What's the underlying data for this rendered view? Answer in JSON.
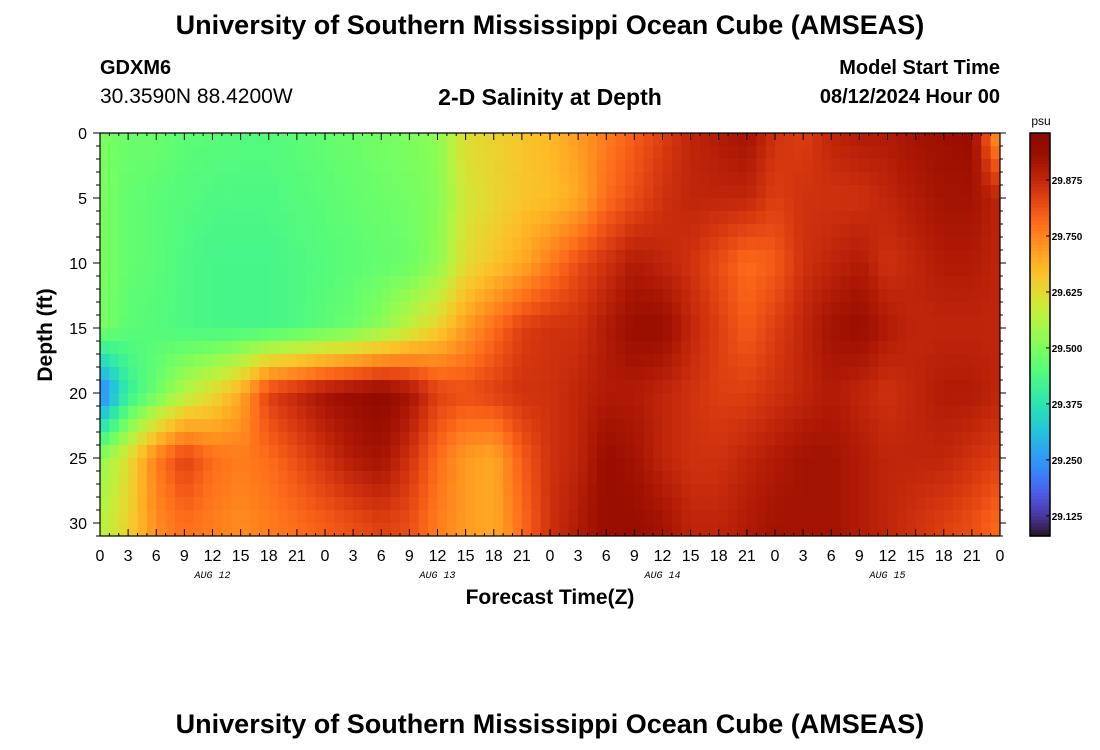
{
  "header": {
    "title": "University of Southern Mississippi Ocean Cube (AMSEAS)",
    "station_id": "GDXM6",
    "coordinates": "30.3590N  88.4200W",
    "product": "2-D Salinity at Depth",
    "model_start_label": "Model Start Time",
    "model_start_value": "08/12/2024 Hour 00"
  },
  "footer": {
    "title": "University of Southern Mississippi Ocean Cube (AMSEAS)"
  },
  "chart_data": {
    "type": "heatmap",
    "xlabel": "Forecast Time(Z)",
    "ylabel": "Depth (ft)",
    "x_tick_labels": [
      "0",
      "3",
      "6",
      "9",
      "12",
      "15",
      "18",
      "21",
      "0",
      "3",
      "6",
      "9",
      "12",
      "15",
      "18",
      "21",
      "0",
      "3",
      "6",
      "9",
      "12",
      "15",
      "18",
      "21",
      "0",
      "3",
      "6",
      "9",
      "12",
      "15",
      "18",
      "21",
      "0"
    ],
    "x_range_hours": [
      0,
      96
    ],
    "day_labels": [
      {
        "label": "AUG 12",
        "hour": 12
      },
      {
        "label": "AUG 13",
        "hour": 36
      },
      {
        "label": "AUG 14",
        "hour": 60
      },
      {
        "label": "AUG 15",
        "hour": 84
      }
    ],
    "ylim": [
      0,
      31
    ],
    "y_inverted": true,
    "y_ticks": [
      0,
      5,
      10,
      15,
      20,
      25,
      30
    ],
    "colorbar": {
      "unit": "psu",
      "range": [
        29.08,
        29.98
      ],
      "ticks": [
        "29.125",
        "29.250",
        "29.375",
        "29.500",
        "29.625",
        "29.750",
        "29.875"
      ],
      "tick_values": [
        29.125,
        29.25,
        29.375,
        29.5,
        29.625,
        29.75,
        29.875
      ],
      "colormap": "turbo"
    },
    "field_hours": [
      0,
      3,
      6,
      9,
      12,
      15,
      18,
      21,
      24,
      27,
      30,
      33,
      36,
      39,
      42,
      45,
      48,
      51,
      54,
      57,
      60,
      63,
      66,
      69,
      72,
      75,
      78,
      81,
      84,
      87,
      90,
      93,
      96
    ],
    "field_depths": [
      0,
      5,
      10,
      15,
      20,
      25,
      30
    ],
    "field_values": [
      [
        29.5,
        29.48,
        29.48,
        29.46,
        29.46,
        29.45,
        29.45,
        29.46,
        29.47,
        29.48,
        29.49,
        29.5,
        29.52,
        29.62,
        29.64,
        29.66,
        29.68,
        29.72,
        29.76,
        29.8,
        29.84,
        29.88,
        29.9,
        29.92,
        29.86,
        29.84,
        29.88,
        29.9,
        29.9,
        29.92,
        29.93,
        29.94,
        29.7
      ],
      [
        29.5,
        29.47,
        29.46,
        29.45,
        29.44,
        29.44,
        29.44,
        29.45,
        29.46,
        29.47,
        29.48,
        29.49,
        29.51,
        29.6,
        29.63,
        29.66,
        29.67,
        29.7,
        29.78,
        29.82,
        29.86,
        29.88,
        29.88,
        29.88,
        29.84,
        29.86,
        29.86,
        29.86,
        29.88,
        29.9,
        29.92,
        29.92,
        29.88
      ],
      [
        29.5,
        29.47,
        29.46,
        29.44,
        29.43,
        29.43,
        29.43,
        29.44,
        29.45,
        29.46,
        29.47,
        29.48,
        29.52,
        29.62,
        29.66,
        29.7,
        29.76,
        29.82,
        29.86,
        29.9,
        29.88,
        29.86,
        29.82,
        29.78,
        29.8,
        29.86,
        29.88,
        29.9,
        29.86,
        29.88,
        29.9,
        29.9,
        29.88
      ],
      [
        29.5,
        29.46,
        29.45,
        29.44,
        29.43,
        29.43,
        29.43,
        29.44,
        29.46,
        29.48,
        29.52,
        29.58,
        29.64,
        29.72,
        29.78,
        29.84,
        29.86,
        29.86,
        29.9,
        29.94,
        29.94,
        29.88,
        29.84,
        29.8,
        29.84,
        29.88,
        29.92,
        29.94,
        29.9,
        29.88,
        29.88,
        29.88,
        29.88
      ],
      [
        29.2,
        29.4,
        29.48,
        29.56,
        29.62,
        29.7,
        29.84,
        29.88,
        29.92,
        29.94,
        29.96,
        29.92,
        29.84,
        29.82,
        29.84,
        29.86,
        29.86,
        29.88,
        29.9,
        29.9,
        29.88,
        29.86,
        29.84,
        29.84,
        29.86,
        29.88,
        29.9,
        29.88,
        29.86,
        29.88,
        29.9,
        29.9,
        29.88
      ],
      [
        29.52,
        29.62,
        29.76,
        29.84,
        29.78,
        29.76,
        29.78,
        29.82,
        29.86,
        29.9,
        29.92,
        29.86,
        29.78,
        29.72,
        29.7,
        29.8,
        29.86,
        29.88,
        29.94,
        29.92,
        29.88,
        29.86,
        29.86,
        29.88,
        29.9,
        29.92,
        29.92,
        29.9,
        29.88,
        29.88,
        29.88,
        29.86,
        29.84
      ],
      [
        29.56,
        29.64,
        29.74,
        29.78,
        29.76,
        29.74,
        29.76,
        29.78,
        29.8,
        29.82,
        29.84,
        29.82,
        29.76,
        29.72,
        29.7,
        29.78,
        29.86,
        29.9,
        29.94,
        29.94,
        29.92,
        29.88,
        29.88,
        29.9,
        29.92,
        29.92,
        29.92,
        29.9,
        29.88,
        29.86,
        29.84,
        29.82,
        29.78
      ]
    ]
  }
}
